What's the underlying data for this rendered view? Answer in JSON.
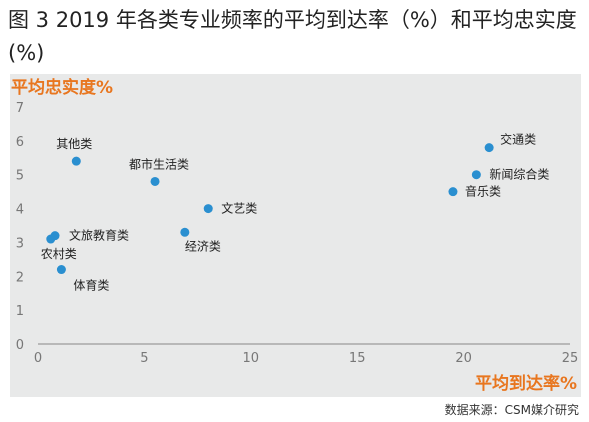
{
  "title": "图 3 2019 年各类专业频率的平均到达率（%）和平均忠实度 (%)",
  "source": "数据来源：CSM媒介研究",
  "colors": {
    "point": "#2a8fd0",
    "axis_title": "#e8761f",
    "panel_background": "#e8e9e9",
    "axis_line": "#888888"
  },
  "chart_data": {
    "type": "scatter",
    "xlabel": "平均到达率%",
    "ylabel": "平均忠实度%",
    "xlim": [
      0,
      25
    ],
    "ylim": [
      0,
      7
    ],
    "x_ticks": [
      0,
      5,
      10,
      15,
      20,
      25
    ],
    "y_ticks": [
      0,
      1,
      2,
      3,
      4,
      5,
      6,
      7
    ],
    "grid": false,
    "points": [
      {
        "label": "其他类",
        "x": 1.8,
        "y": 5.4
      },
      {
        "label": "都市生活类",
        "x": 5.5,
        "y": 4.8
      },
      {
        "label": "文艺类",
        "x": 8.0,
        "y": 4.0
      },
      {
        "label": "经济类",
        "x": 6.9,
        "y": 3.3
      },
      {
        "label": "文旅教育类",
        "x": 0.8,
        "y": 3.2
      },
      {
        "label": "农村类",
        "x": 0.6,
        "y": 3.1
      },
      {
        "label": "体育类",
        "x": 1.1,
        "y": 2.2
      },
      {
        "label": "交通类",
        "x": 21.2,
        "y": 5.8
      },
      {
        "label": "新闻综合类",
        "x": 20.6,
        "y": 5.0
      },
      {
        "label": "音乐类",
        "x": 19.5,
        "y": 4.5
      }
    ]
  }
}
